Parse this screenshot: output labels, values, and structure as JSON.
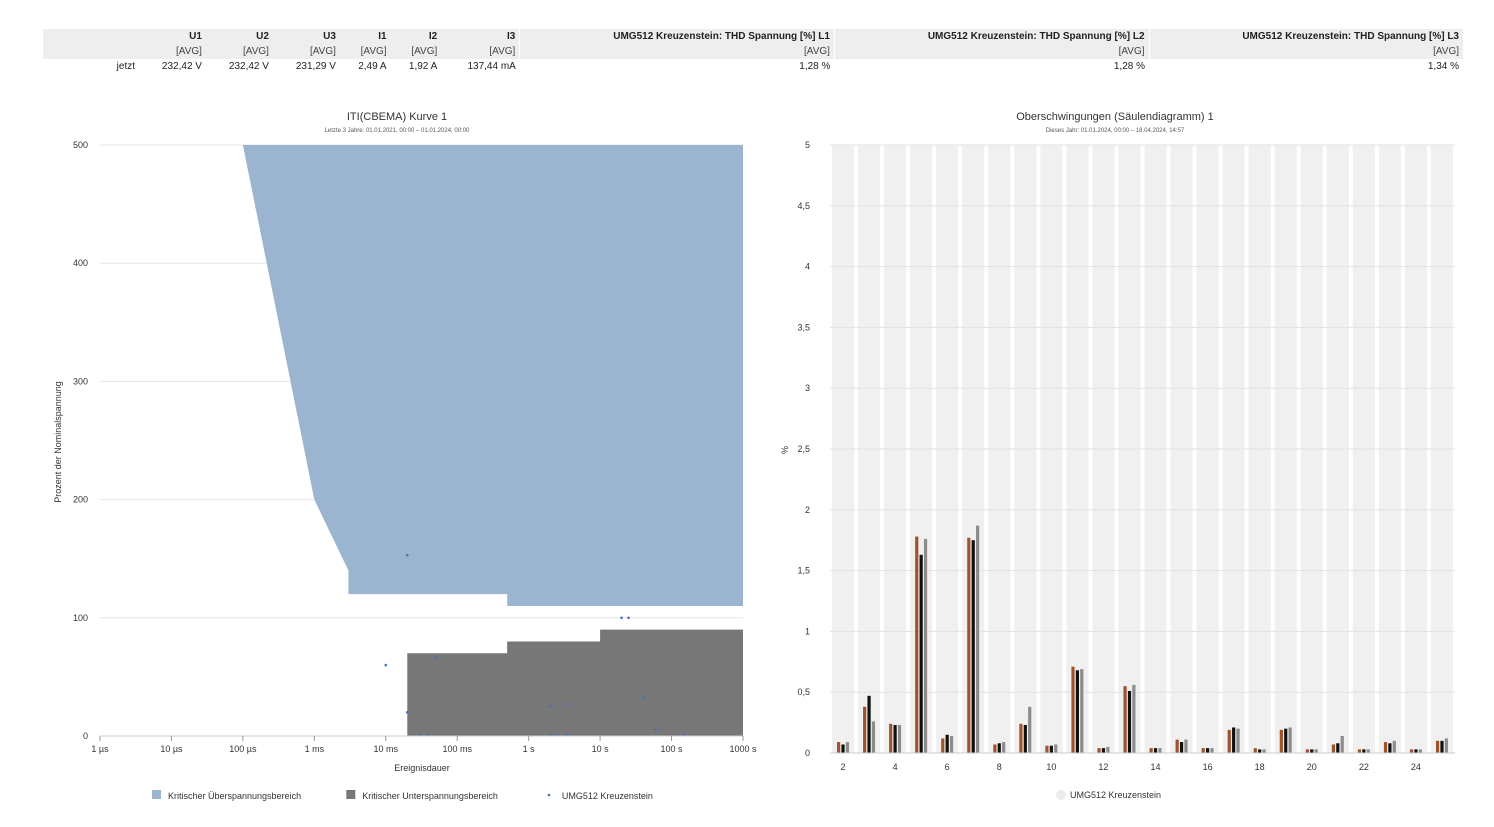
{
  "table": {
    "headers": [
      {
        "name": "U1",
        "unit": "[AVG]",
        "value": "232,42 V"
      },
      {
        "name": "U2",
        "unit": "[AVG]",
        "value": "232,42 V"
      },
      {
        "name": "U3",
        "unit": "[AVG]",
        "value": "231,29 V"
      },
      {
        "name": "I1",
        "unit": "[AVG]",
        "value": "2,49 A"
      },
      {
        "name": "I2",
        "unit": "[AVG]",
        "value": "1,92 A"
      },
      {
        "name": "I3",
        "unit": "[AVG]",
        "value": "137,44 mA"
      },
      {
        "name": "UMG512 Kreuzenstein: THD Spannung [%] L1",
        "unit": "[AVG]",
        "value": "1,28 %"
      },
      {
        "name": "UMG512 Kreuzenstein: THD Spannung [%] L2",
        "unit": "[AVG]",
        "value": "1,28 %"
      },
      {
        "name": "UMG512 Kreuzenstein: THD Spannung [%] L3",
        "unit": "[AVG]",
        "value": "1,34 %"
      }
    ],
    "row_label": "jetzt"
  },
  "chart_data": [
    {
      "type": "area",
      "title": "ITI(CBEMA) Kurve 1",
      "subtitle": "Letzte 3 Jahre: 01.01.2021, 00:00 – 01.01.2024, 00:00",
      "xlabel": "Ereignisdauer",
      "ylabel": "Prozent der Nominalspannung",
      "x_scale": "log",
      "x_ticks": [
        "1 µs",
        "10 µs",
        "100 µs",
        "1 ms",
        "10 ms",
        "100 ms",
        "1 s",
        "10 s",
        "100 s",
        "1000 s"
      ],
      "xlim_seconds": [
        1e-06,
        1000
      ],
      "ylim": [
        0,
        500
      ],
      "y_ticks": [
        0,
        100,
        200,
        300,
        400,
        500
      ],
      "grid": true,
      "legend_position": "bottom",
      "series": [
        {
          "name": "Kritischer Überspannungsbereich",
          "color": "#9bb4cf",
          "upper": [
            [
              0.0001,
              500
            ],
            [
              1000,
              500
            ]
          ],
          "lower": [
            [
              0.0001,
              500
            ],
            [
              0.001,
              200
            ],
            [
              0.003,
              140
            ],
            [
              0.003,
              120
            ],
            [
              0.5,
              120
            ],
            [
              0.5,
              110
            ],
            [
              1000,
              110
            ]
          ]
        },
        {
          "name": "Kritischer Unterspannungsbereich",
          "color": "#777777",
          "upper": [
            [
              0.02,
              70
            ],
            [
              0.5,
              70
            ],
            [
              0.5,
              80
            ],
            [
              10,
              80
            ],
            [
              10,
              90
            ],
            [
              1000,
              90
            ]
          ],
          "lower": [
            [
              0.02,
              0
            ],
            [
              1000,
              0
            ]
          ]
        },
        {
          "name": "UMG512 Kreuzenstein",
          "color": "#4a72b0",
          "points": [
            [
              0.02,
              153
            ],
            [
              0.01,
              60
            ],
            [
              0.02,
              20
            ],
            [
              0.03,
              1
            ],
            [
              0.04,
              1
            ],
            [
              0.05,
              66
            ],
            [
              2,
              25
            ],
            [
              2,
              1
            ],
            [
              2.5,
              1
            ],
            [
              3.5,
              27
            ],
            [
              3.5,
              1
            ],
            [
              20,
              100
            ],
            [
              25,
              100
            ],
            [
              40,
              33
            ],
            [
              60,
              5
            ],
            [
              150,
              1
            ]
          ]
        }
      ]
    },
    {
      "type": "bar",
      "title": "Oberschwingungen (Säulendiagramm) 1",
      "subtitle": "Dieses Jahr: 01.01.2024, 00:00 – 18.04.2024, 14:57",
      "xlabel": "",
      "ylabel": "%",
      "ylim": [
        0,
        5
      ],
      "y_ticks": [
        "0",
        "0,5",
        "1",
        "1,5",
        "2",
        "2,5",
        "3",
        "3,5",
        "4",
        "4,5",
        "5"
      ],
      "categories": [
        2,
        3,
        4,
        5,
        6,
        7,
        8,
        9,
        10,
        11,
        12,
        13,
        14,
        15,
        16,
        17,
        18,
        19,
        20,
        21,
        22,
        23,
        24,
        25
      ],
      "x_tick_labels": [
        "2",
        "4",
        "6",
        "8",
        "10",
        "12",
        "14",
        "16",
        "18",
        "20",
        "22",
        "24"
      ],
      "legend": "UMG512 Kreuzenstein",
      "legend_position": "bottom",
      "series": [
        {
          "color": "#a0522d",
          "values": [
            0.09,
            0.38,
            0.24,
            1.78,
            0.12,
            1.77,
            0.07,
            0.24,
            0.06,
            0.71,
            0.04,
            0.55,
            0.04,
            0.11,
            0.04,
            0.19,
            0.04,
            0.19,
            0.03,
            0.07,
            0.03,
            0.09,
            0.03,
            0.1
          ]
        },
        {
          "color": "#111111",
          "values": [
            0.07,
            0.47,
            0.23,
            1.63,
            0.15,
            1.75,
            0.08,
            0.23,
            0.06,
            0.68,
            0.04,
            0.51,
            0.04,
            0.09,
            0.04,
            0.21,
            0.03,
            0.2,
            0.03,
            0.08,
            0.03,
            0.08,
            0.03,
            0.1
          ]
        },
        {
          "color": "#8c8c8c",
          "values": [
            0.09,
            0.26,
            0.23,
            1.76,
            0.14,
            1.87,
            0.09,
            0.38,
            0.07,
            0.69,
            0.05,
            0.56,
            0.04,
            0.11,
            0.04,
            0.2,
            0.03,
            0.21,
            0.03,
            0.14,
            0.03,
            0.1,
            0.03,
            0.12
          ]
        }
      ]
    }
  ]
}
